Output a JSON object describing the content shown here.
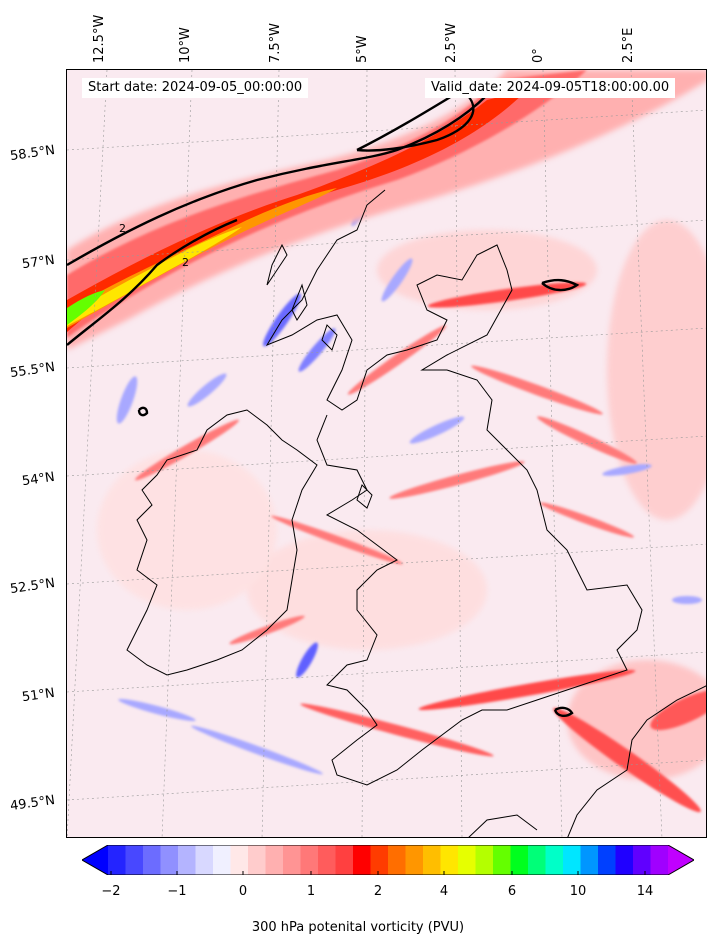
{
  "map": {
    "start_date_text": "Start date: 2024-09-05_00:00:00",
    "valid_date_text": "Valid_date: 2024-09-05T18:00:00.00",
    "longitude_labels": [
      "12.5°W",
      "10°W",
      "7.5°W",
      "5°W",
      "2.5°W",
      "0°",
      "2.5°E"
    ],
    "latitude_labels": [
      "58.5°N",
      "57°N",
      "55.5°N",
      "54°N",
      "52.5°N",
      "51°N",
      "49.5°N"
    ],
    "contour_label": "2",
    "colors": {
      "background": "#f2f2ff",
      "coast": "#000000",
      "jet_core": "#ff2a00",
      "jet_mid": "#ff6060",
      "jet_yellow": "#ffd400",
      "jet_green": "#44ff22",
      "positive_light": "#ffd0d0",
      "negative_light": "#c8c8ff"
    }
  },
  "colorbar": {
    "label": "300 hPa potenital vorticity (PVU)",
    "ticks": [
      "−2",
      "−1",
      "0",
      "1",
      "2",
      "4",
      "6",
      "10",
      "14"
    ],
    "colors": [
      "#0000ff",
      "#2424ff",
      "#4848ff",
      "#6c6cff",
      "#9090ff",
      "#b4b4ff",
      "#d8d8ff",
      "#f0f0ff",
      "#ffe8e8",
      "#ffcccc",
      "#ffb0b0",
      "#ff9494",
      "#ff7878",
      "#ff5c5c",
      "#ff4040",
      "#ff0000",
      "#ff3c00",
      "#ff6e00",
      "#ff9600",
      "#ffbe00",
      "#ffe600",
      "#e6ff00",
      "#b4ff00",
      "#64ff00",
      "#00ff1e",
      "#00ff78",
      "#00ffc8",
      "#00e6ff",
      "#0096ff",
      "#0040ff",
      "#2000ff",
      "#6000ff",
      "#a000ff",
      "#c000ff"
    ]
  }
}
